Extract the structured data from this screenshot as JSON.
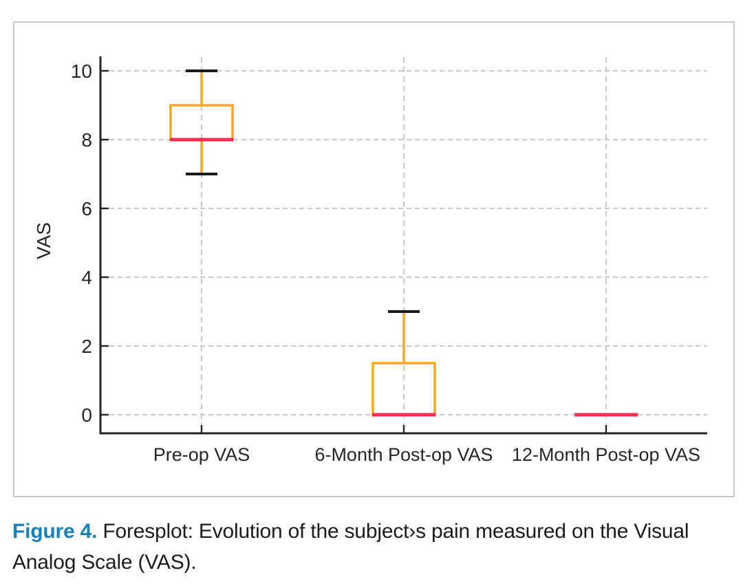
{
  "caption": {
    "label": "Figure 4.",
    "text": " Foresplot: Evolution of the subject›s pain measured on the Visual Analog Scale (VAS).",
    "label_color": "#1b80b7"
  },
  "chart_data": {
    "type": "boxplot",
    "title": "",
    "ylabel": "VAS",
    "xlabel": "",
    "categories": [
      "Pre-op VAS",
      "6-Month Post-op VAS",
      "12-Month Post-op VAS"
    ],
    "yticks": [
      0,
      2,
      4,
      6,
      8,
      10
    ],
    "ylim": [
      -0.55,
      10.4
    ],
    "grid": "dashed gray, horizontal at each y tick and vertical at each category center",
    "legend": "none",
    "series": [
      {
        "name": "Pre-op VAS",
        "whisker_low": 7,
        "q1": 8,
        "median": 8,
        "q3": 9,
        "whisker_high": 10
      },
      {
        "name": "6-Month Post-op VAS",
        "whisker_low": 0,
        "q1": 0,
        "median": 0,
        "q3": 1.5,
        "whisker_high": 3
      },
      {
        "name": "12-Month Post-op VAS",
        "whisker_low": 0,
        "q1": 0,
        "median": 0,
        "q3": 0,
        "whisker_high": 0
      }
    ],
    "colors": {
      "box": "#ffa621",
      "median": "#f22e52",
      "whisker_cap": "#1a1a1a",
      "axis": "#242424",
      "grid": "#cbcbcb",
      "tick_label": "#262626"
    }
  }
}
